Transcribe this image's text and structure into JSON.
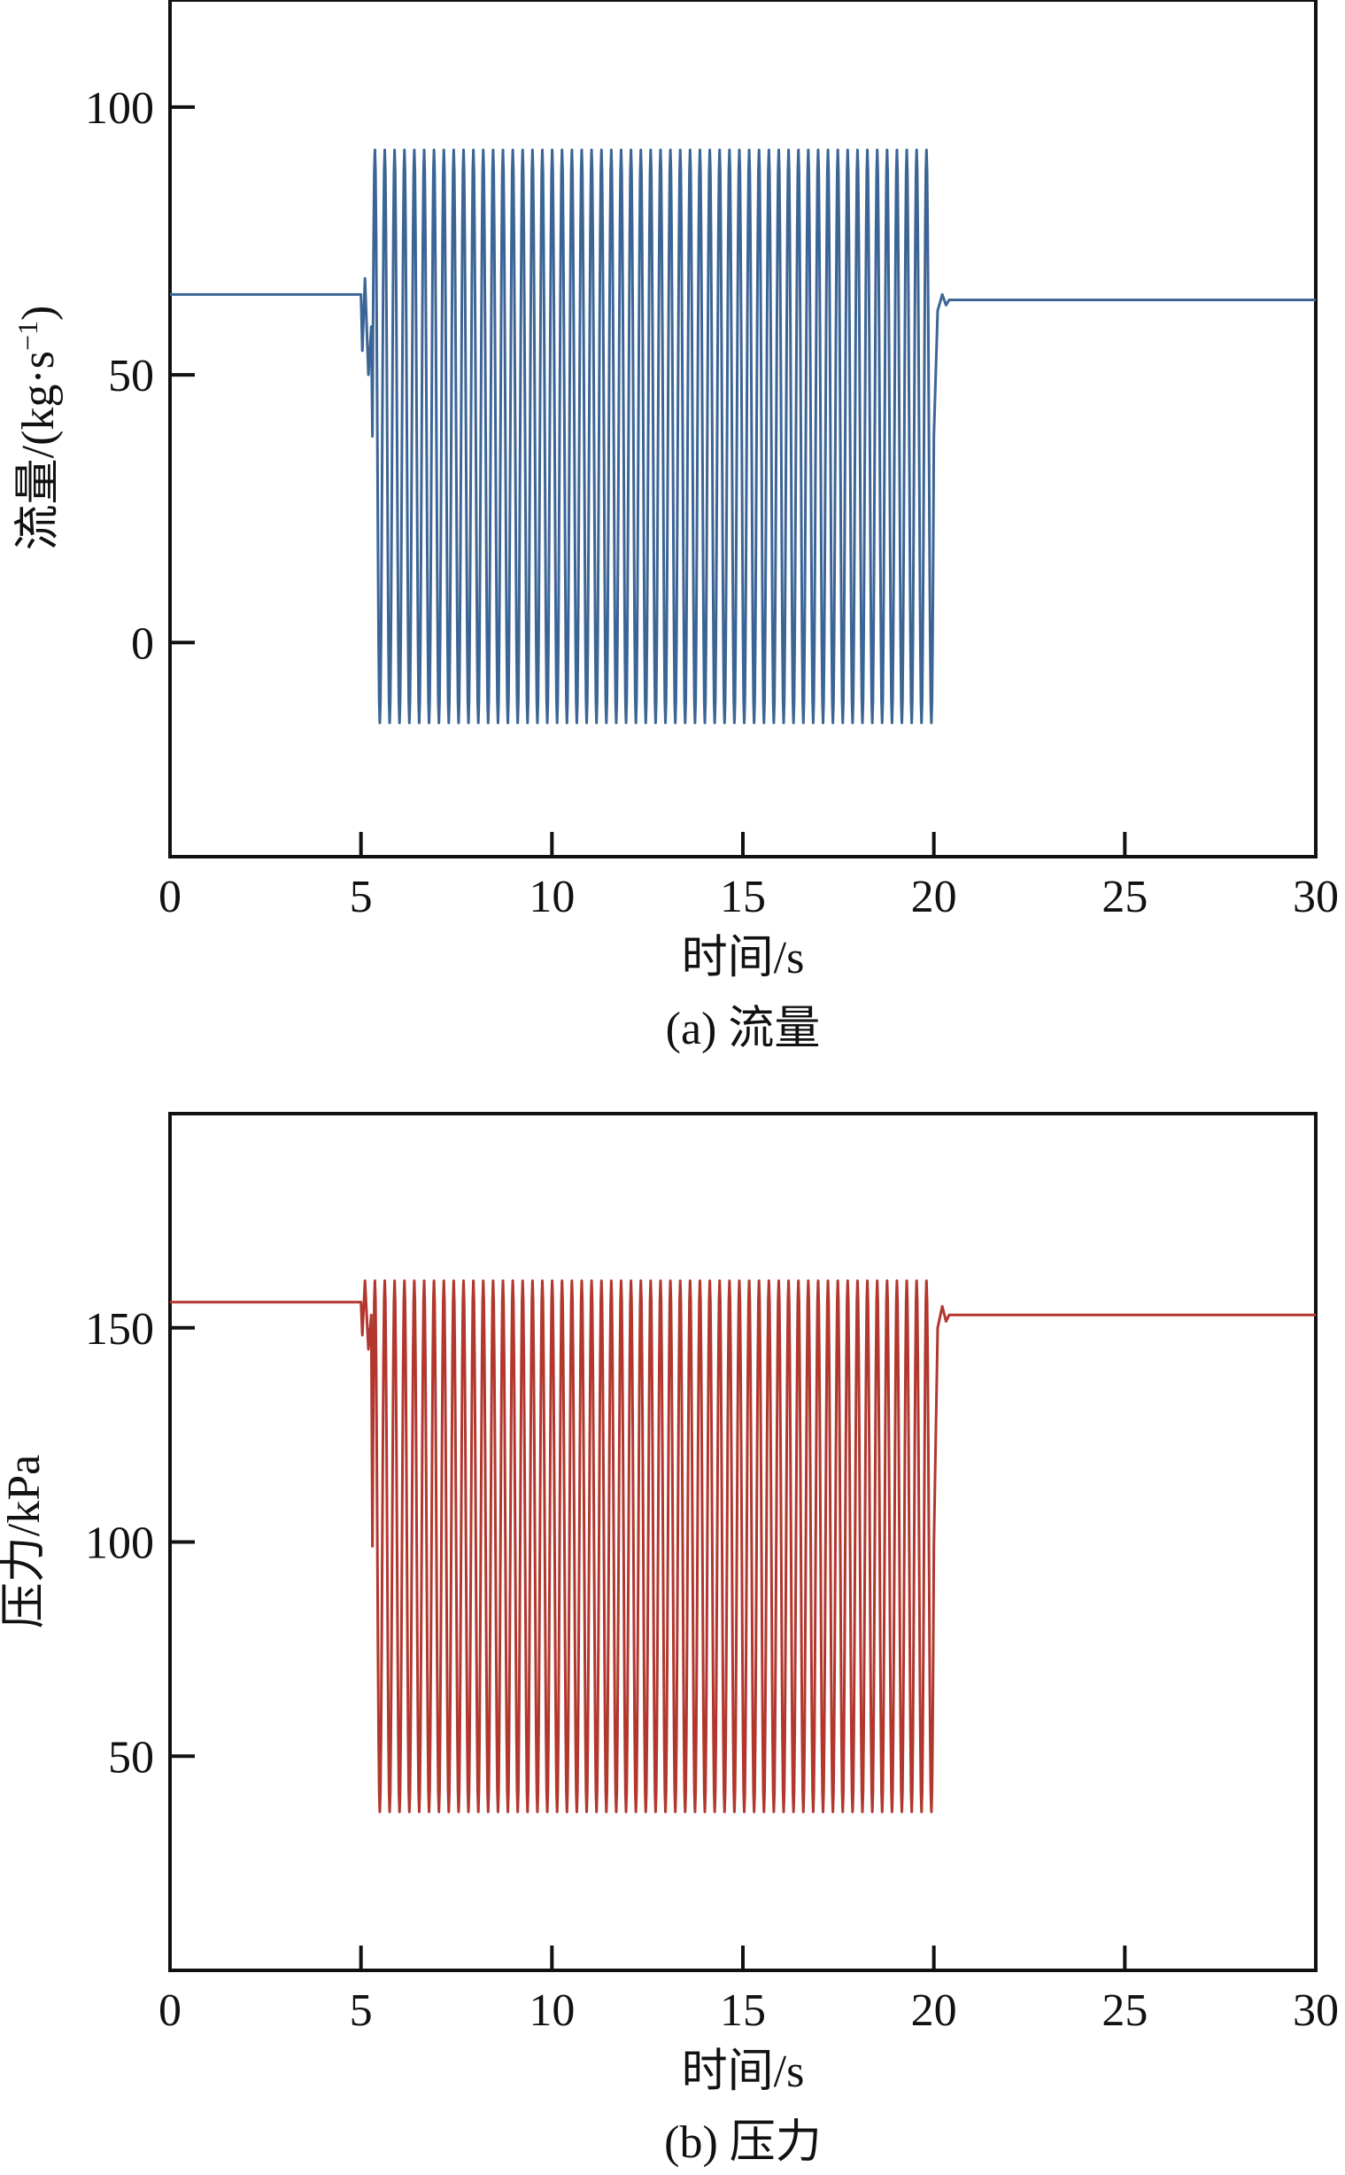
{
  "chart_data": [
    {
      "type": "line",
      "caption": "(a) 流量",
      "xlabel": "时间/s",
      "ylabel_main": "流量/(kg·s",
      "ylabel_sup": "−1",
      "ylabel_close": ")",
      "xlim": [
        0,
        30
      ],
      "ylim": [
        -40,
        120
      ],
      "xticks": [
        0,
        5,
        10,
        15,
        20,
        25,
        30
      ],
      "yticks": [
        0,
        50,
        100
      ],
      "grid": false,
      "legend": "none",
      "color": "#3c6596",
      "series": [
        {
          "baseline_before": 65,
          "transient_before": {
            "t_start": 5.0,
            "t_end": 5.3,
            "low": 50,
            "high": 68
          },
          "oscillation": {
            "t_start": 5.3,
            "t_end": 20.0,
            "max": 92,
            "min": -15,
            "cycles": 57
          },
          "transient_after": {
            "t_start": 20.0,
            "t_end": 20.4,
            "low": 62,
            "high": 65
          },
          "baseline_after": 64
        }
      ]
    },
    {
      "type": "line",
      "caption": "(b) 压力",
      "xlabel": "时间/s",
      "ylabel_main": "压力/kPa",
      "xlim": [
        0,
        30
      ],
      "ylim": [
        0,
        200
      ],
      "xticks": [
        0,
        5,
        10,
        15,
        20,
        25,
        30
      ],
      "yticks": [
        50,
        100,
        150
      ],
      "grid": false,
      "legend": "none",
      "color": "#b2372e",
      "series": [
        {
          "baseline_before": 156,
          "transient_before": {
            "t_start": 5.0,
            "t_end": 5.3,
            "low": 145,
            "high": 161
          },
          "oscillation": {
            "t_start": 5.3,
            "t_end": 20.0,
            "max": 161,
            "min": 37,
            "cycles": 57
          },
          "transient_after": {
            "t_start": 20.0,
            "t_end": 20.4,
            "low": 150,
            "high": 155
          },
          "baseline_after": 153
        }
      ]
    }
  ]
}
